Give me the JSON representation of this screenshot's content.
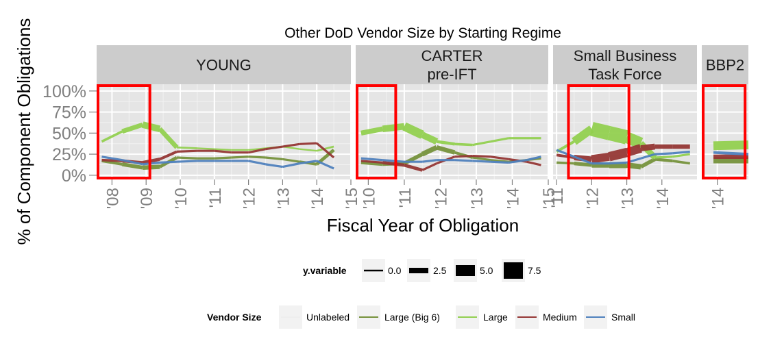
{
  "chart_data": {
    "type": "line",
    "title": "Other DoD Vendor Size by Starting Regime",
    "xlabel": "Fiscal Year of Obligation",
    "ylabel": "% of Component Obligations",
    "y_ticks": [
      "0%",
      "25%",
      "50%",
      "75%",
      "100%"
    ],
    "y_tick_values": [
      0,
      0.25,
      0.5,
      0.75,
      1.0
    ],
    "ylim": [
      -0.05,
      1.08
    ],
    "grid": true,
    "highlight_color": "#ff0000",
    "colors": {
      "Large (Big 6)": "#76923c",
      "Large": "#92d050",
      "Medium": "#953735",
      "Small": "#4f81bd",
      "Unlabeled": "#eeeeee"
    },
    "legend_size": {
      "title": "y.variable",
      "entries": [
        "0.0",
        "2.5",
        "5.0",
        "7.5"
      ],
      "values": [
        0.0,
        2.5,
        5.0,
        7.5
      ]
    },
    "legend_color": {
      "title": "Vendor Size",
      "entries": [
        "Unlabeled",
        "Large (Big 6)",
        "Large",
        "Medium",
        "Small"
      ]
    },
    "panels": [
      {
        "title_lines": [
          "YOUNG"
        ],
        "xlim": [
          2007.55,
          2015.0
        ],
        "tick_values": [
          2008,
          2009,
          2010,
          2011,
          2012,
          2013,
          2014,
          2015
        ],
        "tick_labels": [
          "'08",
          "'09",
          "'10",
          "'11",
          "'12",
          "'13",
          "'14",
          "'15"
        ],
        "highlight_x": [
          2007.55,
          2009.15
        ],
        "series": [
          {
            "name": "Large (Big 6)",
            "x": [
              2007.7,
              2008.3,
              2008.9,
              2009.4,
              2009.9,
              2010.5,
              2011.0,
              2011.5,
              2012.0,
              2012.5,
              2013.0,
              2013.5,
              2014.0,
              2014.5
            ],
            "y": [
              0.17,
              0.13,
              0.09,
              0.1,
              0.21,
              0.2,
              0.2,
              0.21,
              0.22,
              0.21,
              0.19,
              0.16,
              0.13,
              0.3
            ],
            "w": [
              2.0,
              3.0,
              4.0,
              4.0,
              2.0,
              2.0,
              2.0,
              2.0,
              2.0,
              2.0,
              2.0,
              2.0,
              3.0,
              3.0
            ]
          },
          {
            "name": "Large",
            "x": [
              2007.7,
              2008.3,
              2008.9,
              2009.4,
              2009.9,
              2010.5,
              2011.0,
              2011.5,
              2012.0,
              2012.5,
              2013.0,
              2013.5,
              2014.0,
              2014.5
            ],
            "y": [
              0.4,
              0.52,
              0.6,
              0.55,
              0.33,
              0.32,
              0.31,
              0.3,
              0.3,
              0.32,
              0.34,
              0.31,
              0.29,
              0.34
            ],
            "w": [
              1.5,
              3.0,
              5.5,
              6.5,
              2.0,
              1.5,
              1.5,
              1.5,
              1.5,
              1.5,
              1.5,
              1.5,
              1.5,
              2.0
            ]
          },
          {
            "name": "Medium",
            "x": [
              2007.7,
              2008.3,
              2008.9,
              2009.4,
              2009.9,
              2010.5,
              2011.0,
              2011.5,
              2012.0,
              2012.5,
              2013.0,
              2013.5,
              2014.0,
              2014.5
            ],
            "y": [
              0.18,
              0.17,
              0.15,
              0.19,
              0.28,
              0.29,
              0.29,
              0.27,
              0.27,
              0.31,
              0.34,
              0.37,
              0.38,
              0.21
            ],
            "w": [
              2.0,
              2.5,
              3.0,
              3.0,
              2.0,
              2.0,
              2.0,
              2.0,
              2.0,
              2.0,
              2.0,
              2.0,
              2.0,
              2.0
            ]
          },
          {
            "name": "Small",
            "x": [
              2007.7,
              2008.3,
              2008.9,
              2009.4,
              2009.9,
              2010.5,
              2011.0,
              2011.5,
              2012.0,
              2012.5,
              2013.0,
              2013.5,
              2014.0,
              2014.5
            ],
            "y": [
              0.22,
              0.18,
              0.13,
              0.15,
              0.16,
              0.17,
              0.17,
              0.17,
              0.17,
              0.13,
              0.1,
              0.14,
              0.17,
              0.08
            ],
            "w": [
              2.0,
              2.0,
              2.0,
              2.0,
              2.0,
              2.0,
              2.0,
              2.0,
              2.0,
              2.0,
              2.0,
              2.0,
              2.0,
              2.0
            ]
          }
        ]
      },
      {
        "title_lines": [
          "CARTER",
          "pre-IFT"
        ],
        "xlim": [
          2009.65,
          2015.0
        ],
        "tick_values": [
          2010,
          2011,
          2012,
          2013,
          2014,
          2015
        ],
        "tick_labels": [
          "'10",
          "'11",
          "'12",
          "'13",
          "'14",
          "'15"
        ],
        "highlight_x": [
          2009.65,
          2010.8
        ],
        "series": [
          {
            "name": "Large (Big 6)",
            "x": [
              2009.8,
              2010.4,
              2011.0,
              2011.5,
              2011.9,
              2012.4,
              2012.9,
              2013.4,
              2013.9,
              2014.4,
              2014.8
            ],
            "y": [
              0.15,
              0.13,
              0.14,
              0.25,
              0.33,
              0.27,
              0.21,
              0.18,
              0.16,
              0.18,
              0.2
            ],
            "w": [
              3.0,
              3.0,
              3.0,
              4.0,
              5.0,
              3.0,
              2.0,
              2.0,
              2.0,
              2.0,
              2.0
            ]
          },
          {
            "name": "Large",
            "x": [
              2009.8,
              2010.4,
              2011.0,
              2011.5,
              2011.9,
              2012.4,
              2012.9,
              2013.4,
              2013.9,
              2014.4,
              2014.8
            ],
            "y": [
              0.5,
              0.55,
              0.58,
              0.48,
              0.4,
              0.37,
              0.36,
              0.4,
              0.44,
              0.44,
              0.44
            ],
            "w": [
              4.0,
              5.0,
              7.0,
              9.0,
              3.0,
              2.5,
              2.0,
              2.0,
              2.0,
              2.0,
              2.0
            ]
          },
          {
            "name": "Medium",
            "x": [
              2009.8,
              2010.4,
              2011.0,
              2011.5,
              2011.9,
              2012.4,
              2012.9,
              2013.4,
              2013.9,
              2014.4,
              2014.8
            ],
            "y": [
              0.17,
              0.15,
              0.12,
              0.06,
              0.14,
              0.22,
              0.23,
              0.22,
              0.19,
              0.16,
              0.12
            ],
            "w": [
              2.0,
              2.0,
              4.0,
              2.0,
              2.0,
              2.0,
              2.0,
              2.0,
              2.0,
              2.0,
              2.0
            ]
          },
          {
            "name": "Small",
            "x": [
              2009.8,
              2010.4,
              2011.0,
              2011.5,
              2011.9,
              2012.4,
              2012.9,
              2013.4,
              2013.9,
              2014.4,
              2014.8
            ],
            "y": [
              0.2,
              0.18,
              0.16,
              0.16,
              0.18,
              0.18,
              0.17,
              0.16,
              0.15,
              0.18,
              0.22
            ],
            "w": [
              2.0,
              2.0,
              2.0,
              2.0,
              2.0,
              2.0,
              2.0,
              2.0,
              2.0,
              2.0,
              2.0
            ]
          }
        ]
      },
      {
        "title_lines": [
          "Small Business",
          "Task Force"
        ],
        "xlim": [
          2010.9,
          2015.0
        ],
        "tick_values": [
          2011,
          2012,
          2013,
          2014
        ],
        "tick_labels": [
          "'11",
          "'12",
          "'13",
          "'14"
        ],
        "highlight_x": [
          2011.3,
          2013.1
        ],
        "series": [
          {
            "name": "Large (Big 6)",
            "x": [
              2011.0,
              2011.5,
              2012.0,
              2012.5,
              2013.0,
              2013.4,
              2013.8,
              2014.3,
              2014.8
            ],
            "y": [
              0.15,
              0.14,
              0.12,
              0.12,
              0.12,
              0.1,
              0.19,
              0.17,
              0.14
            ],
            "w": [
              2.0,
              2.5,
              4.0,
              5.0,
              6.0,
              4.0,
              3.0,
              2.5,
              2.0
            ]
          },
          {
            "name": "Large",
            "x": [
              2011.0,
              2011.5,
              2012.0,
              2012.5,
              2013.0,
              2013.4,
              2013.8,
              2014.3,
              2014.8
            ],
            "y": [
              0.28,
              0.4,
              0.55,
              0.5,
              0.45,
              0.38,
              0.21,
              0.22,
              0.25
            ],
            "w": [
              2.0,
              3.0,
              12.0,
              14.0,
              12.0,
              9.0,
              2.0,
              2.0,
              2.0
            ]
          },
          {
            "name": "Medium",
            "x": [
              2011.0,
              2011.5,
              2012.0,
              2012.5,
              2013.0,
              2013.4,
              2013.8,
              2014.3,
              2014.8
            ],
            "y": [
              0.24,
              0.21,
              0.19,
              0.22,
              0.27,
              0.32,
              0.34,
              0.34,
              0.34
            ],
            "w": [
              2.0,
              3.0,
              7.0,
              8.0,
              9.0,
              7.0,
              4.0,
              4.0,
              4.0
            ]
          },
          {
            "name": "Small",
            "x": [
              2011.0,
              2011.5,
              2012.0,
              2012.5,
              2013.0,
              2013.4,
              2013.8,
              2014.3,
              2014.8
            ],
            "y": [
              0.3,
              0.22,
              0.14,
              0.14,
              0.15,
              0.2,
              0.25,
              0.26,
              0.28
            ],
            "w": [
              2.0,
              2.0,
              2.0,
              2.0,
              2.0,
              2.0,
              2.0,
              2.0,
              2.0
            ]
          }
        ]
      },
      {
        "title_lines": [
          "BBP2"
        ],
        "xlim": [
          2013.6,
          2014.8
        ],
        "tick_values": [
          2014
        ],
        "tick_labels": [
          "'14"
        ],
        "highlight_x": [
          2013.6,
          2014.75
        ],
        "series": [
          {
            "name": "Large (Big 6)",
            "x": [
              2013.9,
              2014.8
            ],
            "y": [
              0.18,
              0.18
            ],
            "w": [
              6.0,
              6.0
            ]
          },
          {
            "name": "Large",
            "x": [
              2013.9,
              2014.8
            ],
            "y": [
              0.35,
              0.36
            ],
            "w": [
              8.0,
              8.0
            ]
          },
          {
            "name": "Medium",
            "x": [
              2013.9,
              2014.8
            ],
            "y": [
              0.22,
              0.22
            ],
            "w": [
              4.0,
              4.0
            ]
          },
          {
            "name": "Small",
            "x": [
              2013.9,
              2014.8
            ],
            "y": [
              0.27,
              0.25
            ],
            "w": [
              2.5,
              2.5
            ]
          }
        ]
      }
    ]
  }
}
